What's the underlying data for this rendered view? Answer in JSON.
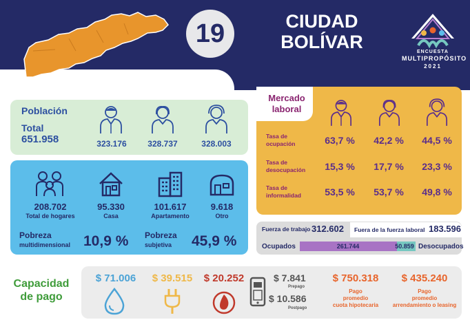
{
  "header": {
    "number": "19",
    "city_line1": "CIUDAD",
    "city_line2": "BOLÍVAR",
    "logo_line1": "ENCUESTA",
    "logo_line2": "MULTIPROPÓSITO",
    "logo_line3": "2021"
  },
  "poblacion": {
    "title": "Población",
    "total_label": "Total",
    "total": "651.958",
    "men": "323.176",
    "women": "328.737",
    "other": "328.003"
  },
  "hogares": {
    "total": "208.702",
    "total_label": "Total de hogares",
    "casa": "95.330",
    "casa_label": "Casa",
    "apartamento": "101.617",
    "apartamento_label": "Apartamento",
    "otro": "9.618",
    "otro_label": "Otro"
  },
  "pobreza": {
    "multi_label": "Pobreza",
    "multi_sub": "multidimensional",
    "multi_value": "10,9 %",
    "subj_label": "Pobreza",
    "subj_sub": "subjetiva",
    "subj_value": "45,9 %"
  },
  "mercado": {
    "title_line1": "Mercado",
    "title_line2": "laboral",
    "rows": [
      {
        "label1": "Tasa de",
        "label2": "ocupación",
        "values": [
          "63,7 %",
          "42,2 %",
          "44,5 %"
        ]
      },
      {
        "label1": "Tasa de",
        "label2": "desocupación",
        "values": [
          "15,3 %",
          "17,7 %",
          "23,3 %"
        ]
      },
      {
        "label1": "Tasa de",
        "label2": "informalidad",
        "values": [
          "53,5 %",
          "53,7 %",
          "49,8 %"
        ]
      }
    ]
  },
  "fuerza": {
    "trabajo_label": "Fuerza de trabajo",
    "trabajo_value": "312.602",
    "fuera_label": "Fuera de la fuerza laboral",
    "fuera_value": "183.596",
    "ocupados_label": "Ocupados",
    "ocupados_value": "261.744",
    "desocupados_value": "50.859",
    "desocupados_label": "Desocupados",
    "ocupados_fraction": 0.837
  },
  "capacidad": {
    "title_line1": "Capacidad",
    "title_line2": "de pago",
    "agua": "$ 71.006",
    "energia": "$ 39.515",
    "gas": "$ 20.252",
    "prepago": "$ 7.841",
    "prepago_label": "Prepago",
    "postpago": "$ 10.586",
    "postpago_label": "Postpago",
    "hipoteca": "$ 750.318",
    "hipoteca_l1": "Pago",
    "hipoteca_l2": "promedio",
    "hipoteca_l3": "cuota hipotecaria",
    "arriendo": "$ 435.240",
    "arriendo_l1": "Pago",
    "arriendo_l2": "promedio",
    "arriendo_l3": "arrendamiento o leasing"
  },
  "colors": {
    "navy": "#242a66",
    "blue_text": "#2c4fa0",
    "green_panel": "#d8edd6",
    "cyan_panel": "#5cbdea",
    "orange_panel": "#efb848",
    "map_orange": "#e8952c",
    "agua": "#4ba3d6",
    "energia": "#efb848",
    "gas": "#c0392b",
    "hipoteca": "#e8652c",
    "ocupados_bar": "#a873c4",
    "desocupados_bar": "#76c7c0"
  }
}
